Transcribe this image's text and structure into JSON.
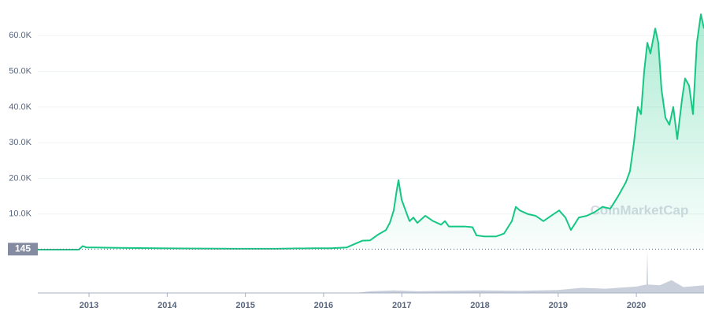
{
  "chart_data": {
    "type": "line",
    "x": [
      2012.345,
      2012.869,
      2012.919,
      2012.97,
      2013.07,
      2013.373,
      2013.876,
      2014.38,
      2014.883,
      2015.387,
      2015.89,
      2016.092,
      2016.293,
      2016.494,
      2016.595,
      2016.696,
      2016.797,
      2016.847,
      2016.897,
      2016.938,
      2016.958,
      2016.998,
      2017.048,
      2017.099,
      2017.149,
      2017.199,
      2017.3,
      2017.401,
      2017.502,
      2017.552,
      2017.602,
      2017.804,
      2017.904,
      2017.955,
      2018.055,
      2018.206,
      2018.307,
      2018.408,
      2018.458,
      2018.509,
      2018.609,
      2018.71,
      2018.811,
      2018.911,
      2019.012,
      2019.093,
      2019.163,
      2019.264,
      2019.365,
      2019.465,
      2019.566,
      2019.667,
      2019.767,
      2019.868,
      2019.918,
      2019.969,
      2020.019,
      2020.059,
      2020.1,
      2020.14,
      2020.18,
      2020.241,
      2020.281,
      2020.321,
      2020.372,
      2020.422,
      2020.472,
      2020.523,
      2020.583,
      2020.623,
      2020.674,
      2020.724,
      2020.774,
      2020.825,
      2020.865
    ],
    "series": [
      {
        "color": "#16c784",
        "values": [
          5,
          10,
          1000,
          600,
          600,
          500,
          400,
          300,
          250,
          250,
          400,
          400,
          600,
          2500,
          2600,
          4200,
          5500,
          7500,
          11000,
          17000,
          19500,
          14000,
          11000,
          8000,
          9000,
          7500,
          9500,
          8000,
          7000,
          8000,
          6500,
          6500,
          6300,
          4000,
          3700,
          3700,
          4500,
          8000,
          12000,
          11000,
          10000,
          9500,
          8000,
          9500,
          11000,
          9000,
          5500,
          9000,
          9500,
          10500,
          12000,
          11500,
          15000,
          19000,
          22000,
          30000,
          40000,
          38000,
          50000,
          58000,
          55000,
          62000,
          58000,
          45000,
          37000,
          35000,
          40000,
          31000,
          42000,
          48000,
          46000,
          38000,
          58000,
          66000,
          62000
        ]
      }
    ],
    "volume": {
      "x": [
        2016.4,
        2016.6,
        2016.9,
        2017.2,
        2017.6,
        2018.0,
        2018.5,
        2019.0,
        2019.3,
        2019.6,
        2020.0,
        2020.13,
        2020.14,
        2020.15,
        2020.3,
        2020.45,
        2020.6,
        2020.865
      ],
      "values": [
        0,
        4,
        6,
        4,
        5,
        6,
        5,
        7,
        12,
        10,
        15,
        20,
        100,
        20,
        18,
        30,
        14,
        18
      ],
      "ylim": [
        0,
        100
      ],
      "color": "#a6b0c3"
    },
    "xlim": [
      2012.345,
      2020.865
    ],
    "xticks": [
      2013,
      2014,
      2015,
      2016,
      2017,
      2018,
      2019,
      2020
    ],
    "ylim": [
      0,
      70000
    ],
    "yticks": [
      {
        "value": 10000,
        "label": "10.0K"
      },
      {
        "value": 20000,
        "label": "20.0K"
      },
      {
        "value": 30000,
        "label": "30.0K"
      },
      {
        "value": 40000,
        "label": "40.0K"
      },
      {
        "value": 50000,
        "label": "50.0K"
      },
      {
        "value": 60000,
        "label": "60.0K"
      }
    ],
    "grid": true,
    "price_marker": 145,
    "watermark": "CoinMarketCap"
  }
}
